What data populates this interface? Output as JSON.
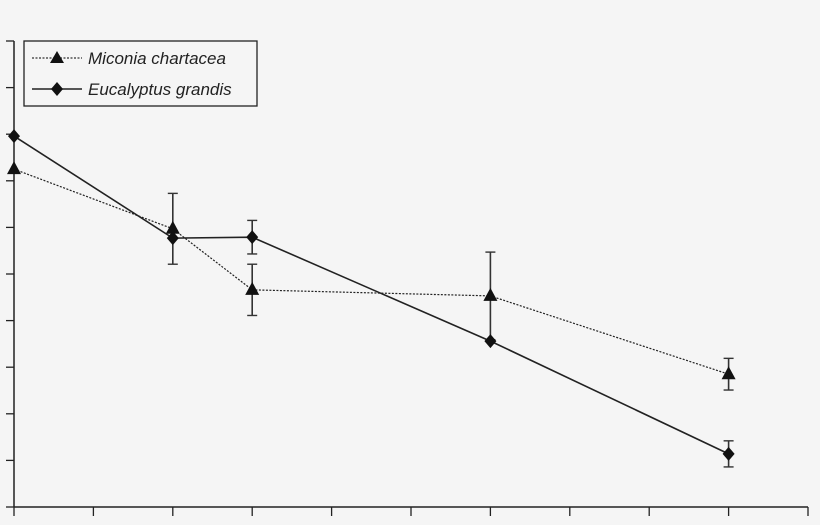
{
  "chart_data": {
    "type": "line",
    "title": "",
    "xlabel": "",
    "ylabel": "",
    "note_units": "axes print no tick labels; values read in tick-interval units",
    "xlim": [
      0,
      10
    ],
    "ylim": [
      0,
      10
    ],
    "x_ticks": [
      0,
      1,
      2,
      3,
      4,
      5,
      6,
      7,
      8,
      9,
      10
    ],
    "y_ticks": [
      0,
      1,
      2,
      3,
      4,
      5,
      6,
      7,
      8,
      9,
      10
    ],
    "grid": false,
    "legend_position": "top-left",
    "series": [
      {
        "name": "Miconia chartacea",
        "marker": "triangle",
        "line": "dotted",
        "x": [
          0,
          2,
          3,
          6,
          9
        ],
        "y": [
          7.25,
          5.97,
          4.66,
          4.53,
          2.85
        ],
        "err": [
          0,
          0.76,
          0.55,
          0.94,
          0.34
        ]
      },
      {
        "name": "Eucalyptus grandis",
        "marker": "diamond",
        "line": "solid",
        "x": [
          0,
          2,
          3,
          6,
          9
        ],
        "y": [
          7.96,
          5.77,
          5.79,
          3.56,
          1.14
        ],
        "err": [
          0,
          0,
          0.36,
          0,
          0.28
        ]
      }
    ],
    "colors": {
      "line": "#222222",
      "background": "#f5f5f5"
    }
  }
}
